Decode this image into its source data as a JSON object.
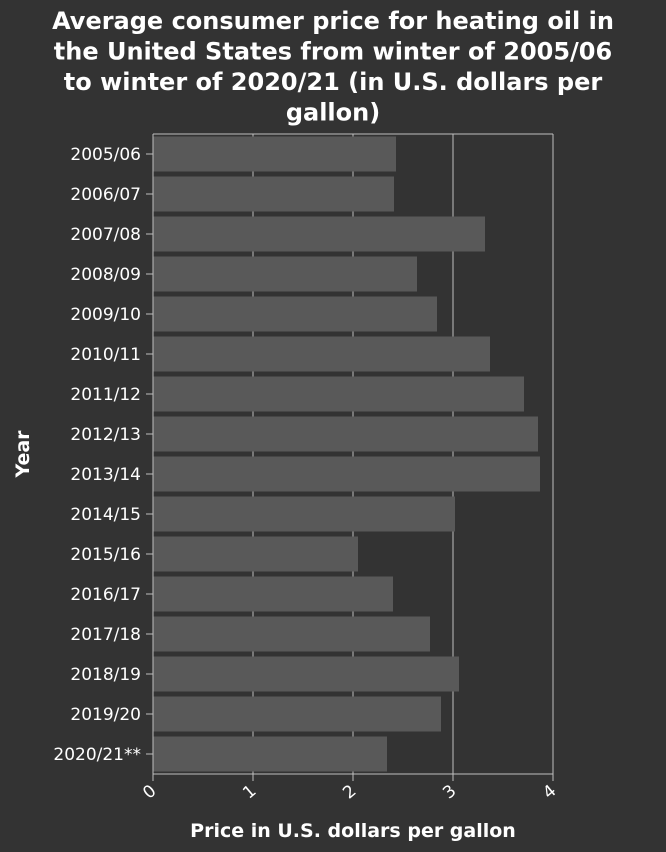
{
  "chart_data": {
    "type": "bar",
    "orientation": "horizontal",
    "title": "Average consumer price for heating oil in the United States from winter of 2005/06 to winter of 2020/21 (in U.S. dollars per gallon)",
    "title_lines": [
      "Average consumer price for heating oil in",
      "the United States from winter of 2005/06",
      "to winter of 2020/21 (in U.S. dollars per",
      "gallon)"
    ],
    "xlabel": "Price in U.S. dollars per gallon",
    "ylabel": "Year",
    "xlim": [
      0,
      4
    ],
    "xticks": [
      "0",
      "1",
      "2",
      "3",
      "4"
    ],
    "categories": [
      "2005/06",
      "2006/07",
      "2007/08",
      "2008/09",
      "2009/10",
      "2010/11",
      "2011/12",
      "2012/13",
      "2013/14",
      "2014/15",
      "2015/16",
      "2016/17",
      "2017/18",
      "2018/19",
      "2019/20",
      "2020/21**"
    ],
    "values": [
      2.43,
      2.41,
      3.32,
      2.64,
      2.84,
      3.37,
      3.71,
      3.85,
      3.87,
      3.02,
      2.05,
      2.4,
      2.77,
      3.06,
      2.88,
      2.34
    ],
    "grid": "vertical",
    "colors": {
      "background": "#333333",
      "bar": "#595959",
      "grid": "#bfbfbf",
      "text": "#ffffff"
    }
  }
}
